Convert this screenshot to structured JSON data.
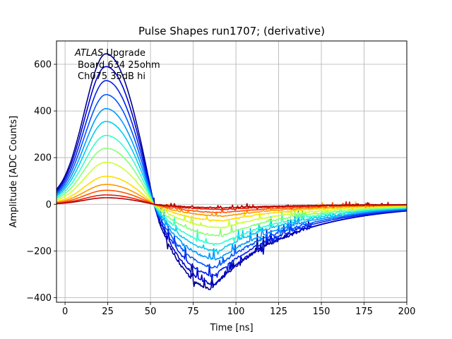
{
  "chart_data": {
    "type": "line",
    "title": "Pulse Shapes run1707; (derivative)",
    "xlabel": "Time [ns]",
    "ylabel": "Amplitude [ADC Counts]",
    "xlim": [
      -5,
      200
    ],
    "ylim": [
      -420,
      700
    ],
    "xticks": [
      0,
      25,
      50,
      75,
      100,
      125,
      150,
      175,
      200
    ],
    "yticks": [
      -400,
      -200,
      0,
      200,
      400,
      600
    ],
    "grid": true,
    "annotation": {
      "experiment_italic": "ATLAS",
      "experiment_rest": " Upgrade",
      "line2": "Board 634 25ohm",
      "line3": "Ch075 35dB hi"
    },
    "peak_time_ns": 24,
    "zero_crossing_ns": 52,
    "series": [
      {
        "color": "#00008b",
        "peak": 645,
        "trough": -360,
        "trough_time": 86,
        "noise_end": 144
      },
      {
        "color": "#0000cd",
        "peak": 590,
        "trough": -340,
        "trough_time": 88,
        "noise_end": 144
      },
      {
        "color": "#0022ee",
        "peak": 530,
        "trough": -305,
        "trough_time": 88,
        "noise_end": 145
      },
      {
        "color": "#0055ff",
        "peak": 470,
        "trough": -270,
        "trough_time": 89,
        "noise_end": 145
      },
      {
        "color": "#0099ff",
        "peak": 410,
        "trough": -235,
        "trough_time": 90,
        "noise_end": 146
      },
      {
        "color": "#00ccee",
        "peak": 355,
        "trough": -200,
        "trough_time": 90,
        "noise_end": 165
      },
      {
        "color": "#33ffcc",
        "peak": 295,
        "trough": -170,
        "trough_time": 91,
        "noise_end": 167
      },
      {
        "color": "#88ff77",
        "peak": 240,
        "trough": -135,
        "trough_time": 92,
        "noise_end": 169
      },
      {
        "color": "#ccff33",
        "peak": 180,
        "trough": -100,
        "trough_time": 93,
        "noise_end": 171
      },
      {
        "color": "#ffdd00",
        "peak": 120,
        "trough": -70,
        "trough_time": 93,
        "noise_end": 175
      },
      {
        "color": "#ff9900",
        "peak": 85,
        "trough": -50,
        "trough_time": 94,
        "noise_end": 180
      },
      {
        "color": "#ff5500",
        "peak": 60,
        "trough": -35,
        "trough_time": 94,
        "noise_end": 185
      },
      {
        "color": "#e81a00",
        "peak": 40,
        "trough": -22,
        "trough_time": 95,
        "noise_end": 190
      },
      {
        "color": "#b00000",
        "peak": 28,
        "trough": -15,
        "trough_time": 95,
        "noise_end": 195
      }
    ]
  }
}
